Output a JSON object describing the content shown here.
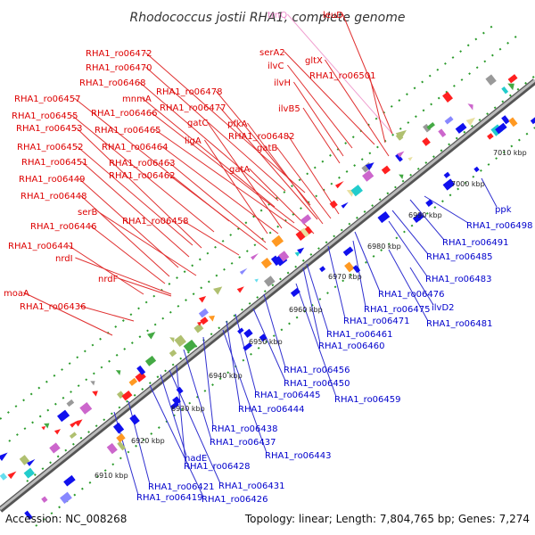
{
  "title": "Rhodococcus jostii RHA1, complete genome",
  "footer": {
    "accession": "Accession: NC_008268",
    "topology": "Topology: linear; Length: 7,804,765 bp; Genes: 7,274"
  },
  "colors": {
    "forward_label": "#dd0000",
    "reverse_label": "#0000cc",
    "rna_label": "#ee88cc",
    "backbone": "#777777",
    "dots": "#2a9a2a"
  },
  "ruler": [
    "6910 kbp",
    "6920 kbp",
    "6930 kbp",
    "6940 kbp",
    "6950 kbp",
    "6960 kbp",
    "6970 kbp",
    "6980 kbp",
    "6990 kbp",
    "7000 kbp",
    "7010 kbp"
  ],
  "forward_labels": [
    "trnQ",
    "leuD",
    "serA2",
    "gltX",
    "ilvC",
    "RHA1_ro06501",
    "ilvH",
    "ilvB5",
    "RHA1_ro06472",
    "RHA1_ro06470",
    "RHA1_ro06468",
    "RHA1_ro06478",
    "mnmA",
    "RHA1_ro06477",
    "RHA1_ro06457",
    "RHA1_ro06466",
    "RHA1_ro06455",
    "pfkA",
    "gatC",
    "RHA1_ro06453",
    "RHA1_ro06465",
    "RHA1_ro06482",
    "ligA",
    "gatB",
    "RHA1_ro06452",
    "RHA1_ro06464",
    "RHA1_ro06451",
    "RHA1_ro06463",
    "RHA1_ro06462",
    "gatA",
    "RHA1_ro06449",
    "RHA1_ro06448",
    "serB",
    "RHA1_ro06458",
    "RHA1_ro06446",
    "RHA1_ro06441",
    "nrdI",
    "nrdF",
    "moaA",
    "RHA1_ro06436"
  ],
  "reverse_labels": [
    "ppk",
    "RHA1_ro06498",
    "RHA1_ro06491",
    "RHA1_ro06485",
    "RHA1_ro06483",
    "RHA1_ro06476",
    "ilvD2",
    "RHA1_ro06475",
    "RHA1_ro06481",
    "RHA1_ro06471",
    "RHA1_ro06461",
    "RHA1_ro06460",
    "RHA1_ro06456",
    "RHA1_ro06450",
    "RHA1_ro06459",
    "RHA1_ro06445",
    "RHA1_ro06444",
    "RHA1_ro06438",
    "RHA1_ro06437",
    "RHA1_ro06443",
    "nadE",
    "RHA1_ro06428",
    "RHA1_ro06431",
    "RHA1_ro06421",
    "RHA1_ro06419",
    "RHA1_ro06426"
  ]
}
